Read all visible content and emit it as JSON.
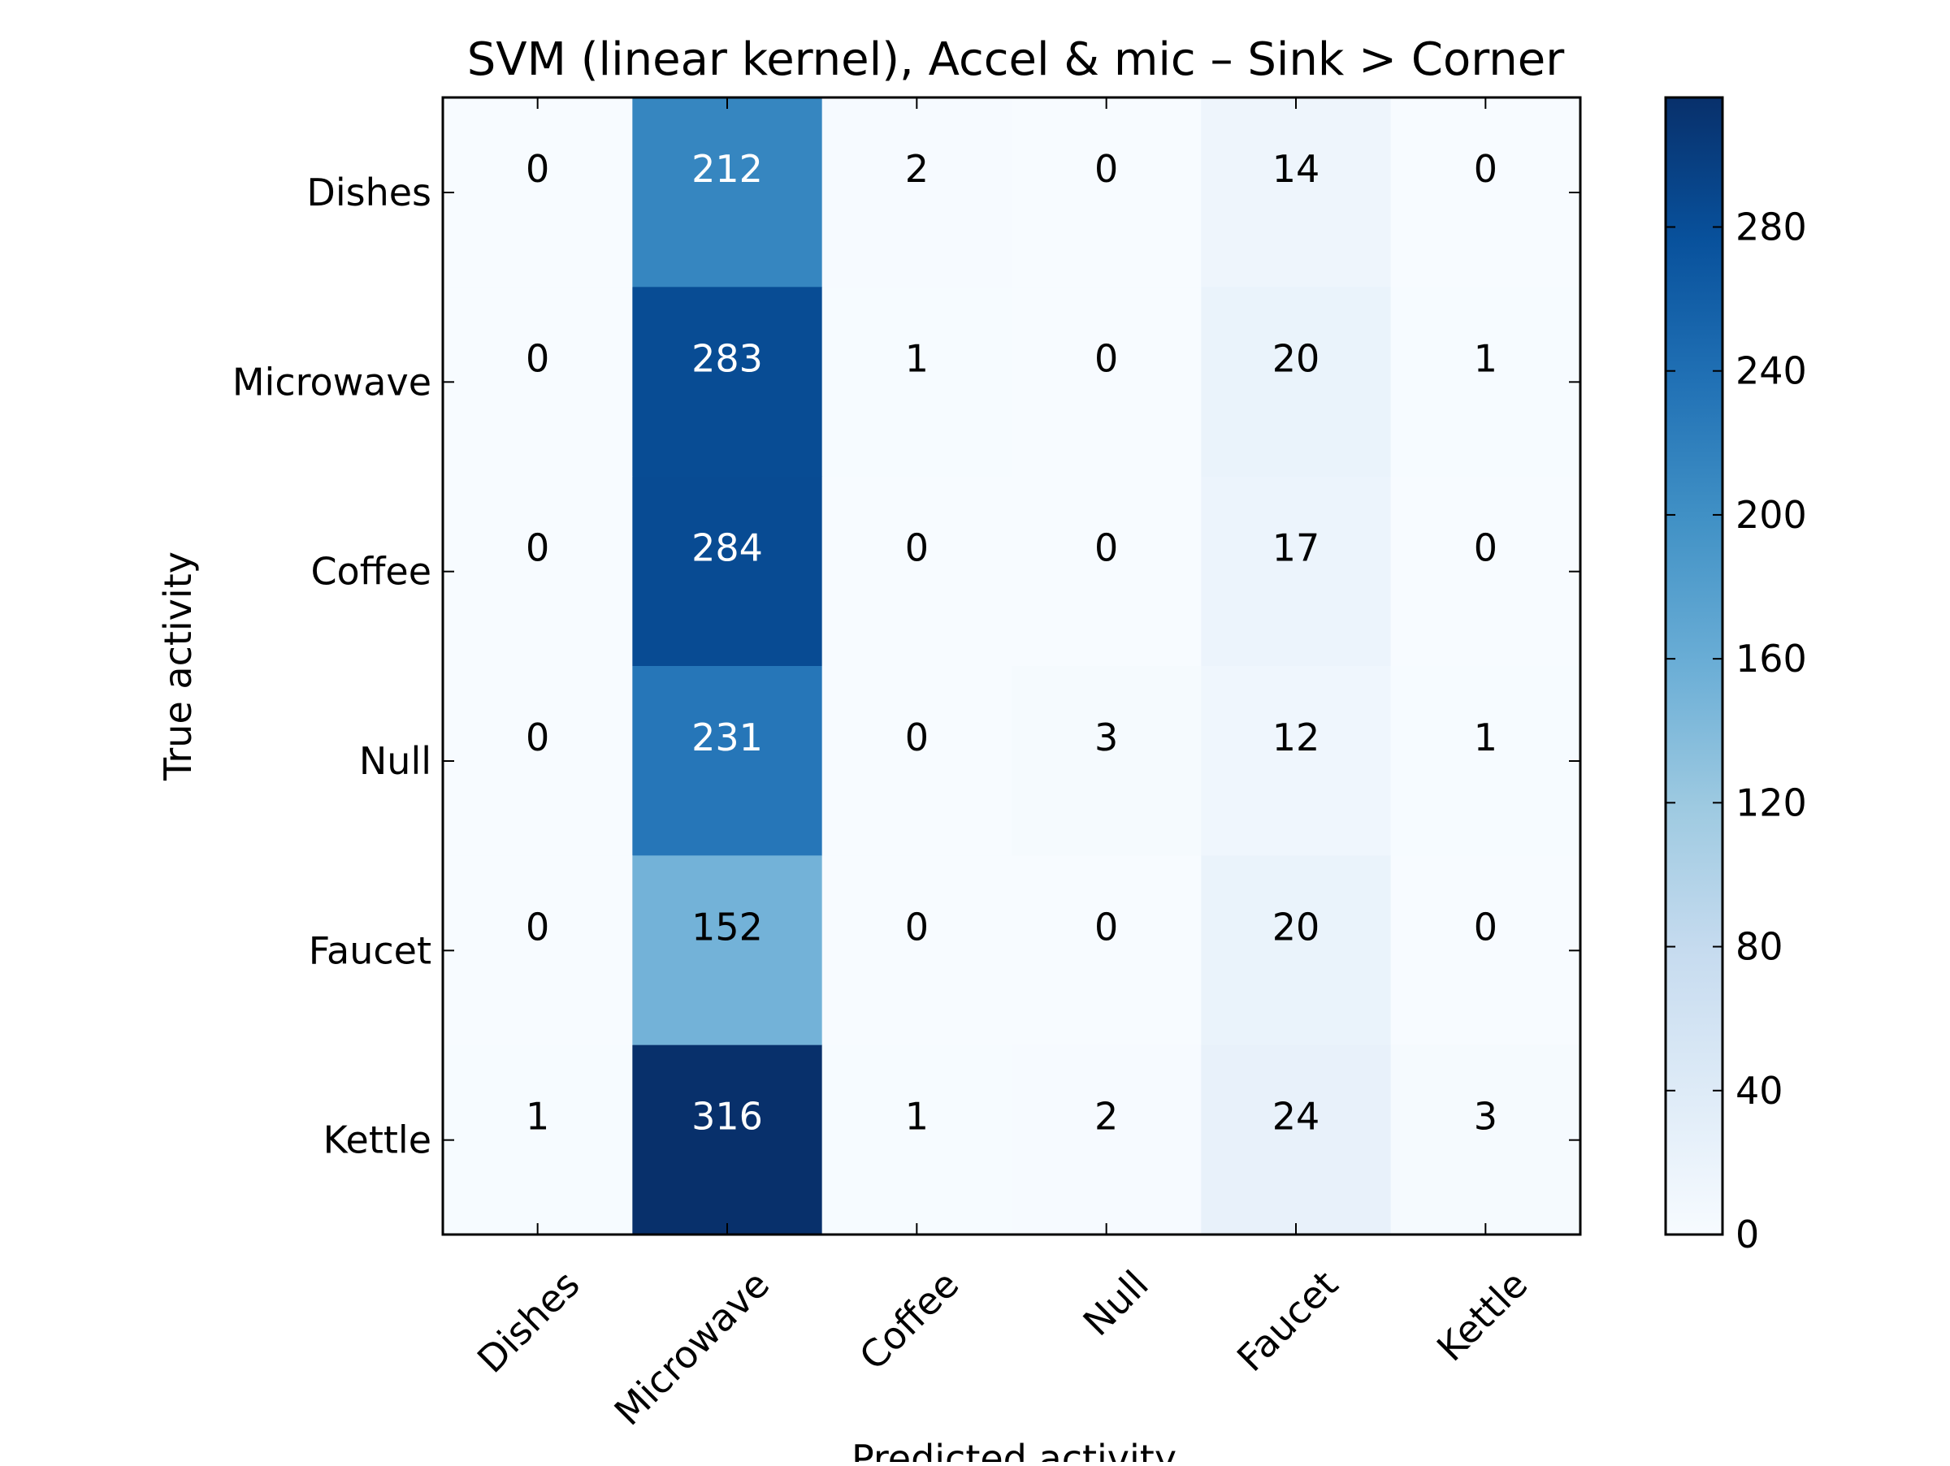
{
  "chart_data": {
    "type": "heatmap",
    "title": "SVM (linear kernel), Accel & mic – Sink > Corner",
    "xlabel": "Predicted activity",
    "ylabel": "True activity",
    "x_categories": [
      "Dishes",
      "Microwave",
      "Coffee",
      "Null",
      "Faucet",
      "Kettle"
    ],
    "y_categories": [
      "Dishes",
      "Microwave",
      "Coffee",
      "Null",
      "Faucet",
      "Kettle"
    ],
    "values": [
      [
        0,
        212,
        2,
        0,
        14,
        0
      ],
      [
        0,
        283,
        1,
        0,
        20,
        1
      ],
      [
        0,
        284,
        0,
        0,
        17,
        0
      ],
      [
        0,
        231,
        0,
        3,
        12,
        1
      ],
      [
        0,
        152,
        0,
        0,
        20,
        0
      ],
      [
        1,
        316,
        1,
        2,
        24,
        3
      ]
    ],
    "colorbar": {
      "range": [
        0,
        316
      ],
      "ticks": [
        0,
        40,
        80,
        120,
        160,
        200,
        240,
        280
      ],
      "colormap": "Blues"
    }
  }
}
